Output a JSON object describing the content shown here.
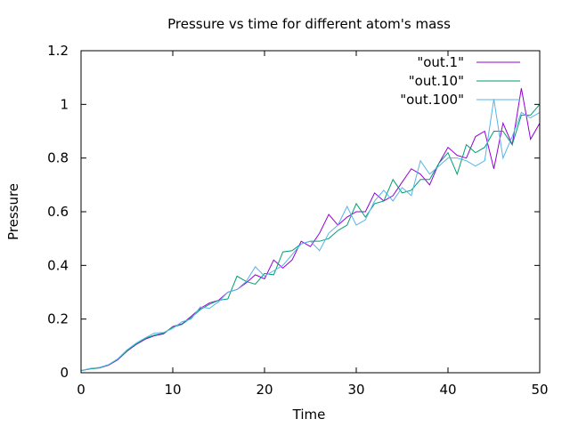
{
  "chart_data": {
    "type": "line",
    "title": "Pressure vs time for different atom's mass",
    "xlabel": "Time",
    "ylabel": "Pressure",
    "xlim": [
      0,
      50
    ],
    "ylim": [
      0,
      1.2
    ],
    "xticks": [
      "0",
      "10",
      "20",
      "30",
      "40",
      "50"
    ],
    "yticks": [
      "0",
      "0.2",
      "0.4",
      "0.6",
      "0.8",
      "1",
      "1.2"
    ],
    "grid": false,
    "legend_position": "top-right",
    "series": [
      {
        "name": "\"out.1\"",
        "color": "#9400d3",
        "x": [
          0,
          1,
          2,
          3,
          4,
          5,
          6,
          7,
          8,
          9,
          10,
          11,
          12,
          13,
          14,
          15,
          16,
          17,
          18,
          19,
          20,
          21,
          22,
          23,
          24,
          25,
          26,
          27,
          28,
          29,
          30,
          31,
          32,
          33,
          34,
          35,
          36,
          37,
          38,
          39,
          40,
          41,
          42,
          43,
          44,
          45,
          46,
          47,
          48,
          49,
          50
        ],
        "y": [
          0.008,
          0.015,
          0.018,
          0.028,
          0.048,
          0.08,
          0.105,
          0.125,
          0.138,
          0.145,
          0.172,
          0.182,
          0.21,
          0.24,
          0.26,
          0.27,
          0.3,
          0.31,
          0.335,
          0.365,
          0.35,
          0.42,
          0.39,
          0.42,
          0.49,
          0.47,
          0.52,
          0.59,
          0.55,
          0.58,
          0.6,
          0.6,
          0.67,
          0.64,
          0.66,
          0.71,
          0.76,
          0.74,
          0.7,
          0.78,
          0.84,
          0.81,
          0.8,
          0.88,
          0.9,
          0.76,
          0.93,
          0.85,
          1.06,
          0.87,
          0.93
        ]
      },
      {
        "name": "\"out.10\"",
        "color": "#009e73",
        "x": [
          0,
          1,
          2,
          3,
          4,
          5,
          6,
          7,
          8,
          9,
          10,
          11,
          12,
          13,
          14,
          15,
          16,
          17,
          18,
          19,
          20,
          21,
          22,
          23,
          24,
          25,
          26,
          27,
          28,
          29,
          30,
          31,
          32,
          33,
          34,
          35,
          36,
          37,
          38,
          39,
          40,
          41,
          42,
          43,
          44,
          45,
          46,
          47,
          48,
          49,
          50
        ],
        "y": [
          0.008,
          0.014,
          0.018,
          0.03,
          0.05,
          0.082,
          0.107,
          0.128,
          0.14,
          0.148,
          0.17,
          0.18,
          0.205,
          0.235,
          0.255,
          0.27,
          0.275,
          0.36,
          0.34,
          0.33,
          0.37,
          0.365,
          0.45,
          0.455,
          0.48,
          0.49,
          0.49,
          0.5,
          0.53,
          0.55,
          0.63,
          0.58,
          0.63,
          0.64,
          0.72,
          0.67,
          0.68,
          0.72,
          0.72,
          0.78,
          0.82,
          0.74,
          0.85,
          0.82,
          0.84,
          0.9,
          0.9,
          0.85,
          0.96,
          0.96,
          1.0
        ]
      },
      {
        "name": "\"out.100\"",
        "color": "#56b4e9",
        "x": [
          0,
          1,
          2,
          3,
          4,
          5,
          6,
          7,
          8,
          9,
          10,
          11,
          12,
          13,
          14,
          15,
          16,
          17,
          18,
          19,
          20,
          21,
          22,
          23,
          24,
          25,
          26,
          27,
          28,
          29,
          30,
          31,
          32,
          33,
          34,
          35,
          36,
          37,
          38,
          39,
          40,
          41,
          42,
          43,
          44,
          45,
          46,
          47,
          48,
          49,
          50
        ],
        "y": [
          0.008,
          0.016,
          0.02,
          0.03,
          0.052,
          0.085,
          0.11,
          0.13,
          0.148,
          0.15,
          0.165,
          0.19,
          0.2,
          0.245,
          0.24,
          0.265,
          0.3,
          0.31,
          0.34,
          0.395,
          0.36,
          0.38,
          0.4,
          0.44,
          0.48,
          0.49,
          0.455,
          0.52,
          0.55,
          0.62,
          0.55,
          0.57,
          0.64,
          0.68,
          0.64,
          0.69,
          0.66,
          0.79,
          0.74,
          0.77,
          0.8,
          0.8,
          0.79,
          0.77,
          0.79,
          1.02,
          0.8,
          0.88,
          0.97,
          0.95,
          0.97
        ]
      }
    ]
  }
}
